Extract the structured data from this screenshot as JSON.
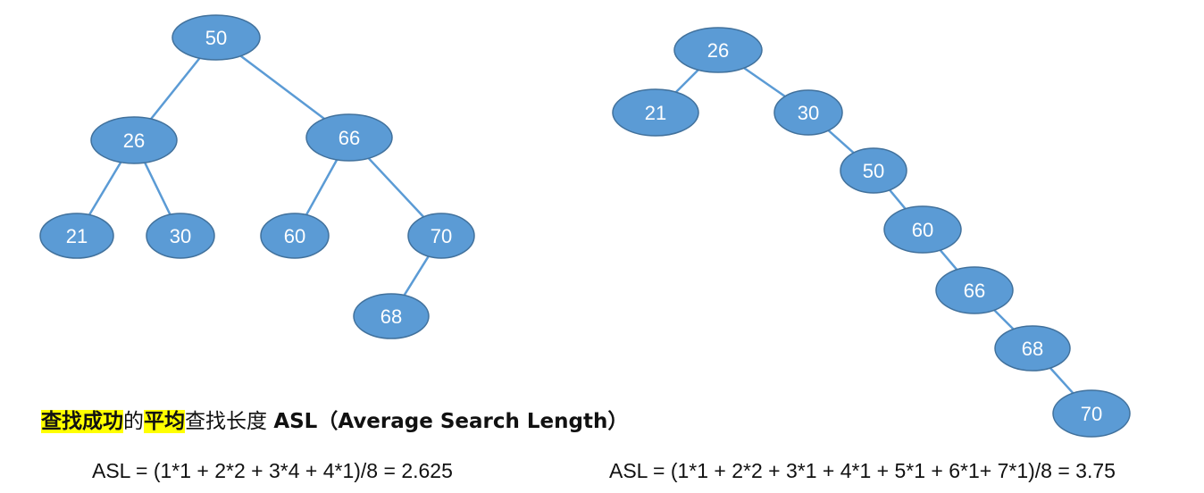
{
  "colors": {
    "node_fill": "#5b9bd5",
    "node_stroke": "#41719c",
    "edge": "#5b9bd5",
    "label": "#ffffff",
    "highlight": "#ffff00"
  },
  "trees": [
    {
      "nodes": [
        {
          "id": "n50",
          "label": "50"
        },
        {
          "id": "n26",
          "label": "26"
        },
        {
          "id": "n66",
          "label": "66"
        },
        {
          "id": "n21",
          "label": "21"
        },
        {
          "id": "n30",
          "label": "30"
        },
        {
          "id": "n60",
          "label": "60"
        },
        {
          "id": "n70",
          "label": "70"
        },
        {
          "id": "n68",
          "label": "68"
        }
      ],
      "edges": [
        [
          "n50",
          "n26"
        ],
        [
          "n50",
          "n66"
        ],
        [
          "n26",
          "n21"
        ],
        [
          "n26",
          "n30"
        ],
        [
          "n66",
          "n60"
        ],
        [
          "n66",
          "n70"
        ],
        [
          "n70",
          "n68"
        ]
      ]
    },
    {
      "nodes": [
        {
          "id": "m26",
          "label": "26"
        },
        {
          "id": "m21",
          "label": "21"
        },
        {
          "id": "m30",
          "label": "30"
        },
        {
          "id": "m50",
          "label": "50"
        },
        {
          "id": "m60",
          "label": "60"
        },
        {
          "id": "m66",
          "label": "66"
        },
        {
          "id": "m68",
          "label": "68"
        },
        {
          "id": "m70",
          "label": "70"
        }
      ],
      "edges": [
        [
          "m26",
          "m21"
        ],
        [
          "m26",
          "m30"
        ],
        [
          "m30",
          "m50"
        ],
        [
          "m50",
          "m60"
        ],
        [
          "m60",
          "m66"
        ],
        [
          "m66",
          "m68"
        ],
        [
          "m68",
          "m70"
        ]
      ]
    }
  ],
  "heading": {
    "part1_highlight": "查找成功",
    "part2": "的",
    "part3_highlight": "平均",
    "part4": "查找长度 ",
    "part5_bold": "ASL（Average Search Length）"
  },
  "formulas": {
    "left": "ASL = (1*1 + 2*2 + 3*4 + 4*1)/8 = 2.625",
    "right": "ASL = (1*1 + 2*2 + 3*1 + 4*1 + 5*1 + 6*1+  7*1)/8 = 3.75"
  }
}
